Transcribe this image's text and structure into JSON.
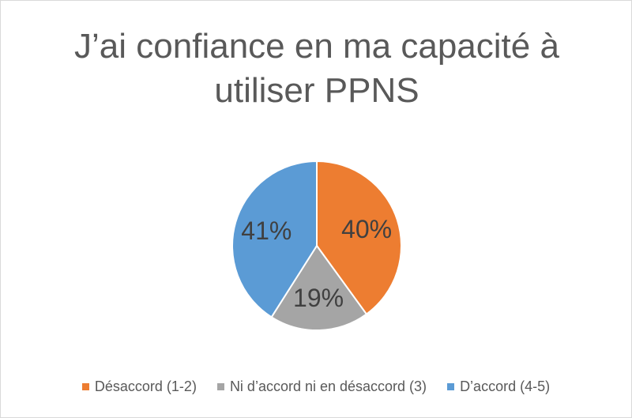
{
  "chart_data": {
    "type": "pie",
    "title": "J’ai confiance en ma capacité à utiliser PPNS",
    "categories": [
      "Désaccord (1-2)",
      "Ni d’accord ni en désaccord (3)",
      "D’accord (4-5)"
    ],
    "values": [
      40,
      19,
      41
    ],
    "value_labels": [
      "40%",
      "19%",
      "41%"
    ],
    "colors": [
      "#ED7D31",
      "#A5A5A5",
      "#5B9BD5"
    ],
    "legend": "bottom"
  }
}
